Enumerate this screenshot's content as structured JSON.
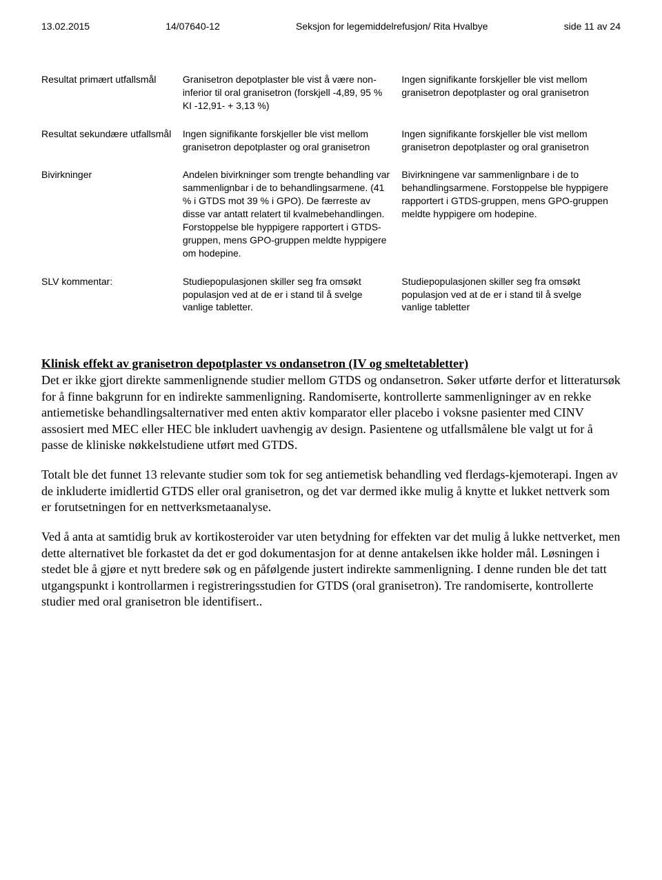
{
  "header": {
    "date": "13.02.2015",
    "case_no": "14/07640-12",
    "section": "Seksjon for legemiddelrefusjon/ Rita Hvalbye",
    "page_info": "side 11 av 24"
  },
  "table": {
    "rows": [
      {
        "label": "Resultat primært utfallsmål",
        "col2": "Granisetron depotplaster ble vist å være non-inferior til oral granisetron (forskjell -4,89, 95 % KI -12,91- + 3,13 %)",
        "col3": "Ingen signifikante forskjeller ble vist mellom granisetron depotplaster og oral granisetron"
      },
      {
        "label": "Resultat sekundære utfallsmål",
        "col2": "Ingen signifikante forskjeller ble vist mellom granisetron depotplaster og oral granisetron",
        "col3": "Ingen signifikante forskjeller ble vist mellom granisetron depotplaster og oral granisetron"
      },
      {
        "label": "Bivirkninger",
        "col2": "Andelen bivirkninger som trengte behandling var sammenlignbar i de to behandlingsarmene. (41 % i GTDS mot 39 % i GPO). De færreste av disse var antatt relatert til kvalmebehandlingen. Forstoppelse ble hyppigere rapportert i GTDS-gruppen, mens GPO-gruppen meldte hyppigere om hodepine.",
        "col3": "Bivirkningene var sammenlignbare i de to behandlingsarmene. Forstoppelse ble hyppigere rapportert i GTDS-gruppen, mens GPO-gruppen meldte hyppigere om hodepine."
      },
      {
        "label": "SLV kommentar:",
        "col2": "Studiepopulasjonen skiller seg fra omsøkt populasjon ved at de er i stand til å svelge vanlige tabletter.",
        "col3": "Studiepopulasjonen skiller seg fra omsøkt populasjon ved at de er i stand til å svelge vanlige tabletter"
      }
    ]
  },
  "section": {
    "heading": "Klinisk effekt av granisetron depotplaster vs ondansetron (IV og smeltetabletter)",
    "p1": "Det er ikke gjort direkte sammenlignende studier mellom GTDS og ondansetron. Søker utførte derfor et litteratursøk for å finne bakgrunn for en indirekte sammenligning. Randomiserte, kontrollerte sammenligninger av en rekke antiemetiske behandlingsalternativer med enten aktiv komparator eller placebo i voksne pasienter med CINV assosiert med MEC eller HEC ble inkludert uavhengig av design. Pasientene og utfallsmålene ble valgt ut for å passe de kliniske nøkkelstudiene utført med GTDS.",
    "p2": "Totalt ble det funnet 13 relevante studier som tok for seg antiemetisk behandling ved flerdags-kjemoterapi. Ingen av de inkluderte imidlertid GTDS eller oral granisetron, og det var dermed ikke mulig å knytte et lukket nettverk som er forutsetningen for en nettverksmetaanalyse.",
    "p3": "Ved å anta at samtidig bruk av kortikosteroider var uten betydning for effekten var det mulig å lukke nettverket, men dette alternativet ble forkastet da det er god dokumentasjon for at denne antakelsen ikke holder mål. Løsningen i stedet ble å gjøre et nytt bredere søk og en påfølgende justert indirekte sammenligning. I denne runden ble det tatt utgangspunkt i kontrollarmen i registreringsstudien for GTDS (oral granisetron). Tre randomiserte, kontrollerte studier med oral granisetron ble identifisert.."
  }
}
